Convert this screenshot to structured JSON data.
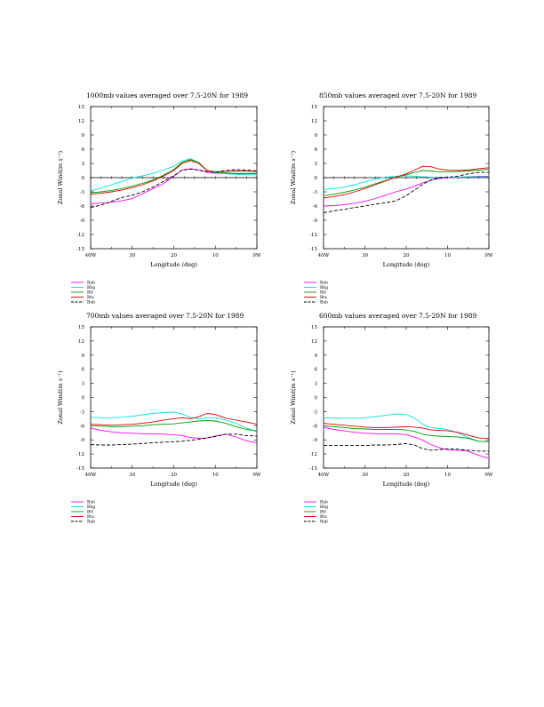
{
  "chart_data": [
    {
      "type": "line",
      "title": "1000mb values averaged over 7.5-20N for 1989",
      "xlabel": "Longitude (deg)",
      "ylabel": "Zonal Wind(m s⁻¹)",
      "xlim": [
        40,
        0
      ],
      "ylim": [
        -15,
        15
      ],
      "xticks": [
        40,
        30,
        20,
        10,
        0
      ],
      "xtick_labels": [
        "40W",
        "30",
        "20",
        "10",
        "0W"
      ],
      "yticks": [
        -15,
        -12,
        -9,
        -6,
        -3,
        0,
        3,
        6,
        9,
        12,
        15
      ],
      "zero_line": true,
      "x": [
        40,
        37.5,
        35,
        32.5,
        30,
        27.5,
        25,
        22.5,
        20,
        18,
        16,
        14,
        12,
        10,
        7.5,
        5,
        2.5,
        0
      ],
      "series": [
        {
          "name": "Bab",
          "color": "#ff00ff",
          "dash": false,
          "values": [
            -5.5,
            -5.4,
            -5.2,
            -4.9,
            -4.4,
            -3.4,
            -2.3,
            -1.3,
            0.3,
            1.6,
            1.9,
            1.6,
            1.1,
            0.9,
            0.9,
            0.8,
            0.8,
            0.8
          ]
        },
        {
          "name": "Bhg",
          "color": "#00e0e0",
          "dash": false,
          "values": [
            -2.8,
            -2.2,
            -1.5,
            -0.8,
            -0.1,
            0.4,
            0.9,
            1.6,
            2.4,
            3.5,
            4.0,
            3.2,
            1.5,
            1.0,
            0.8,
            0.7,
            0.6,
            0.6
          ]
        },
        {
          "name": "Btf",
          "color": "#00a000",
          "dash": false,
          "values": [
            -3.2,
            -3.0,
            -2.7,
            -2.3,
            -1.8,
            -1.2,
            -0.5,
            0.5,
            1.7,
            3.2,
            3.8,
            3.2,
            1.5,
            1.1,
            1.0,
            0.9,
            0.9,
            0.9
          ]
        },
        {
          "name": "Bta",
          "color": "#e00000",
          "dash": false,
          "values": [
            -3.5,
            -3.3,
            -3.0,
            -2.6,
            -2.1,
            -1.5,
            -0.7,
            0.3,
            1.5,
            3.0,
            3.6,
            3.0,
            1.5,
            1.2,
            1.3,
            1.4,
            1.4,
            1.3
          ]
        },
        {
          "name": "Bab",
          "color": "#000000",
          "dash": true,
          "values": [
            -6.3,
            -5.8,
            -5.0,
            -4.2,
            -3.7,
            -3.0,
            -2.0,
            -0.8,
            0.4,
            1.6,
            1.8,
            1.6,
            1.3,
            1.2,
            1.5,
            1.7,
            1.6,
            1.4
          ]
        }
      ]
    },
    {
      "type": "line",
      "title": "850mb values averaged over 7.5-20N for 1989",
      "xlabel": "Longitude (deg)",
      "ylabel": "Zonal Wind(m s⁻¹)",
      "xlim": [
        40,
        0
      ],
      "ylim": [
        -15,
        15
      ],
      "xticks": [
        40,
        30,
        20,
        10,
        0
      ],
      "xtick_labels": [
        "40W",
        "30",
        "20",
        "10",
        "0W"
      ],
      "yticks": [
        -15,
        -12,
        -9,
        -6,
        -3,
        0,
        3,
        6,
        9,
        12,
        15
      ],
      "zero_line": true,
      "x": [
        40,
        37.5,
        35,
        32.5,
        30,
        27.5,
        25,
        22.5,
        20,
        18,
        16,
        14,
        12,
        10,
        7.5,
        5,
        2.5,
        0
      ],
      "series": [
        {
          "name": "Bab",
          "color": "#ff00ff",
          "dash": false,
          "values": [
            -6.0,
            -5.9,
            -5.7,
            -5.4,
            -5.0,
            -4.4,
            -3.7,
            -3.0,
            -2.4,
            -1.8,
            -1.1,
            -0.5,
            -0.2,
            0.0,
            0.1,
            0.2,
            0.3,
            0.3
          ]
        },
        {
          "name": "Bhg",
          "color": "#00e0e0",
          "dash": false,
          "values": [
            -2.5,
            -2.3,
            -2.0,
            -1.5,
            -0.9,
            -0.3,
            0.1,
            0.3,
            0.4,
            0.3,
            0.2,
            0.1,
            0.1,
            0.1,
            0.1,
            0.2,
            0.2,
            0.2
          ]
        },
        {
          "name": "Btf",
          "color": "#00a000",
          "dash": false,
          "values": [
            -3.8,
            -3.5,
            -3.1,
            -2.6,
            -2.0,
            -1.3,
            -0.6,
            0.1,
            0.6,
            1.1,
            1.5,
            1.4,
            1.2,
            1.2,
            1.3,
            1.4,
            1.6,
            1.8
          ]
        },
        {
          "name": "Bta",
          "color": "#e00000",
          "dash": false,
          "values": [
            -4.3,
            -4.0,
            -3.6,
            -3.0,
            -2.3,
            -1.5,
            -0.7,
            0.1,
            0.8,
            1.6,
            2.4,
            2.3,
            1.8,
            1.6,
            1.5,
            1.6,
            1.9,
            2.1
          ]
        },
        {
          "name": "Bab",
          "color": "#000000",
          "dash": true,
          "values": [
            -7.4,
            -7.0,
            -6.7,
            -6.3,
            -6.0,
            -5.6,
            -5.3,
            -4.9,
            -3.8,
            -2.6,
            -1.4,
            -0.5,
            0.0,
            0.1,
            0.3,
            0.8,
            1.1,
            1.1
          ]
        }
      ]
    },
    {
      "type": "line",
      "title": "700mb values averaged over 7.5-20N for 1989",
      "xlabel": "Longitude (deg)",
      "ylabel": "Zonal Wind(m s⁻¹)",
      "xlim": [
        40,
        0
      ],
      "ylim": [
        -15,
        15
      ],
      "xticks": [
        40,
        30,
        20,
        10,
        0
      ],
      "xtick_labels": [
        "40W",
        "30",
        "20",
        "10",
        "0W"
      ],
      "yticks": [
        -15,
        -12,
        -9,
        -6,
        -3,
        0,
        3,
        6,
        9,
        12,
        15
      ],
      "zero_line": false,
      "x": [
        40,
        37.5,
        35,
        32.5,
        30,
        27.5,
        25,
        22.5,
        20,
        18,
        16,
        14,
        12,
        10,
        7.5,
        5,
        2.5,
        0
      ],
      "series": [
        {
          "name": "Bab",
          "color": "#ff00ff",
          "dash": false,
          "values": [
            -6.5,
            -7.0,
            -7.3,
            -7.5,
            -7.6,
            -7.7,
            -7.7,
            -7.8,
            -7.9,
            -8.1,
            -8.5,
            -8.7,
            -8.6,
            -8.2,
            -7.8,
            -8.4,
            -9.2,
            -9.6
          ]
        },
        {
          "name": "Bhg",
          "color": "#00e0e0",
          "dash": false,
          "values": [
            -4.2,
            -4.3,
            -4.3,
            -4.2,
            -4.0,
            -3.7,
            -3.4,
            -3.2,
            -3.1,
            -3.5,
            -4.2,
            -4.5,
            -4.3,
            -4.3,
            -4.8,
            -5.5,
            -6.5,
            -7.3
          ]
        },
        {
          "name": "Btf",
          "color": "#00a000",
          "dash": false,
          "values": [
            -6.0,
            -6.1,
            -6.2,
            -6.2,
            -6.1,
            -6.0,
            -5.8,
            -5.7,
            -5.6,
            -5.4,
            -5.2,
            -5.0,
            -4.9,
            -5.0,
            -5.5,
            -6.2,
            -6.8,
            -7.1
          ]
        },
        {
          "name": "Bta",
          "color": "#e00000",
          "dash": false,
          "values": [
            -5.7,
            -5.8,
            -5.9,
            -5.8,
            -5.7,
            -5.5,
            -5.2,
            -4.8,
            -4.5,
            -4.3,
            -4.5,
            -4.1,
            -3.4,
            -3.6,
            -4.4,
            -4.8,
            -5.2,
            -5.7
          ]
        },
        {
          "name": "Bab",
          "color": "#000000",
          "dash": true,
          "values": [
            -10.0,
            -10.1,
            -10.1,
            -10.0,
            -9.9,
            -9.8,
            -9.6,
            -9.5,
            -9.4,
            -9.3,
            -9.1,
            -8.9,
            -8.6,
            -8.3,
            -7.8,
            -7.8,
            -8.1,
            -8.2
          ]
        }
      ]
    },
    {
      "type": "line",
      "title": "600mb values averaged over 7.5-20N for 1989",
      "xlabel": "Longitude (deg)",
      "ylabel": "Zonal Wind(m s⁻¹)",
      "xlim": [
        40,
        0
      ],
      "ylim": [
        -15,
        15
      ],
      "xticks": [
        40,
        30,
        20,
        10,
        0
      ],
      "xtick_labels": [
        "40W",
        "30",
        "20",
        "10",
        "0W"
      ],
      "yticks": [
        -15,
        -12,
        -9,
        -6,
        -3,
        0,
        3,
        6,
        9,
        12,
        15
      ],
      "zero_line": false,
      "x": [
        40,
        37.5,
        35,
        32.5,
        30,
        27.5,
        25,
        22.5,
        20,
        18,
        16,
        14,
        12,
        10,
        7.5,
        5,
        2.5,
        0
      ],
      "series": [
        {
          "name": "Bab",
          "color": "#ff00ff",
          "dash": false,
          "values": [
            -6.3,
            -6.8,
            -7.1,
            -7.4,
            -7.6,
            -7.7,
            -7.7,
            -7.7,
            -7.9,
            -8.4,
            -9.1,
            -10.0,
            -10.7,
            -11.1,
            -11.2,
            -11.4,
            -12.3,
            -12.9
          ]
        },
        {
          "name": "Bhg",
          "color": "#00e0e0",
          "dash": false,
          "values": [
            -4.3,
            -4.4,
            -4.4,
            -4.4,
            -4.3,
            -4.1,
            -3.8,
            -3.5,
            -3.6,
            -4.4,
            -5.7,
            -6.4,
            -6.6,
            -6.8,
            -7.5,
            -8.5,
            -9.3,
            -9.4
          ]
        },
        {
          "name": "Btf",
          "color": "#00a000",
          "dash": false,
          "values": [
            -6.0,
            -6.2,
            -6.4,
            -6.6,
            -6.7,
            -6.8,
            -6.8,
            -6.8,
            -6.9,
            -7.2,
            -7.8,
            -8.1,
            -8.2,
            -8.3,
            -8.4,
            -8.7,
            -9.3,
            -9.4
          ]
        },
        {
          "name": "Bta",
          "color": "#e00000",
          "dash": false,
          "values": [
            -5.5,
            -5.7,
            -5.9,
            -6.1,
            -6.3,
            -6.4,
            -6.4,
            -6.3,
            -6.2,
            -6.3,
            -6.5,
            -6.9,
            -7.0,
            -7.1,
            -7.4,
            -8.0,
            -8.6,
            -8.7
          ]
        },
        {
          "name": "Bab",
          "color": "#000000",
          "dash": true,
          "values": [
            -10.2,
            -10.2,
            -10.2,
            -10.2,
            -10.2,
            -10.1,
            -10.1,
            -10.0,
            -9.8,
            -10.1,
            -10.9,
            -11.2,
            -11.1,
            -10.9,
            -11.0,
            -11.2,
            -11.4,
            -11.4
          ]
        }
      ]
    }
  ]
}
